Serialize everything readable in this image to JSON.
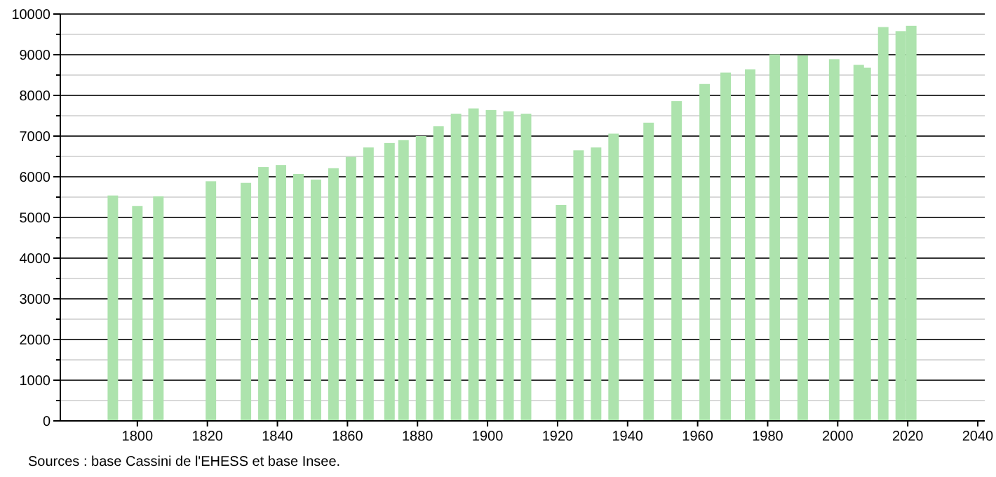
{
  "chart_data": {
    "type": "bar",
    "color": "#ade3ad",
    "x": [
      1793,
      1800,
      1806,
      1821,
      1831,
      1836,
      1841,
      1846,
      1851,
      1856,
      1861,
      1866,
      1872,
      1876,
      1881,
      1886,
      1891,
      1896,
      1901,
      1906,
      1911,
      1921,
      1926,
      1931,
      1936,
      1946,
      1954,
      1962,
      1968,
      1975,
      1982,
      1990,
      1999,
      2006,
      2008,
      2013,
      2018,
      2021
    ],
    "values": [
      5540,
      5280,
      5520,
      5890,
      5850,
      6240,
      6290,
      6070,
      5930,
      6210,
      6490,
      6720,
      6830,
      6900,
      7000,
      7240,
      7550,
      7680,
      7640,
      7610,
      7550,
      5310,
      6650,
      6720,
      7060,
      7330,
      7860,
      8280,
      8560,
      8640,
      9010,
      8980,
      8890,
      8750,
      8680,
      9680,
      9580,
      9710
    ],
    "xlim": [
      1778,
      2042
    ],
    "xticks": [
      1800,
      1820,
      1840,
      1860,
      1880,
      1900,
      1920,
      1940,
      1960,
      1980,
      2000,
      2020,
      2040
    ],
    "ylim": [
      0,
      10000
    ],
    "yticks": [
      0,
      {
        "value": 500,
        "label": null
      },
      1000,
      {
        "value": 1500,
        "label": null
      },
      2000,
      {
        "value": 2500,
        "label": null
      },
      3000,
      {
        "value": 3500,
        "label": null
      },
      4000,
      {
        "value": 4500,
        "label": null
      },
      5000,
      {
        "value": 5500,
        "label": null
      },
      6000,
      {
        "value": 6500,
        "label": null
      },
      7000,
      {
        "value": 7500,
        "label": null
      },
      8000,
      {
        "value": 8500,
        "label": null
      },
      9000,
      {
        "value": 9500,
        "label": null
      },
      10000
    ],
    "grid": "y",
    "annotations": [
      "Sources : base Cassini de l'EHESS et base Insee."
    ]
  }
}
